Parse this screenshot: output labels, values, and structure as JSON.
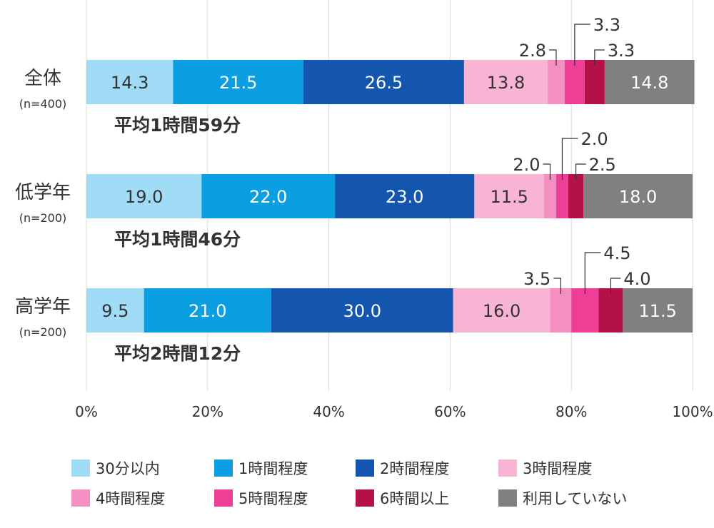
{
  "chart_data": {
    "type": "bar",
    "orientation": "horizontal",
    "stacked": true,
    "xlim": [
      0,
      100
    ],
    "x_ticks": [
      "0%",
      "20%",
      "40%",
      "60%",
      "80%",
      "100%"
    ],
    "grid": true,
    "legend_position": "bottom",
    "categories": [
      {
        "label": "全体",
        "n": "(n=400)",
        "average": "平均1時間59分"
      },
      {
        "label": "低学年",
        "n": "(n=200)",
        "average": "平均1時間46分"
      },
      {
        "label": "高学年",
        "n": "(n=200)",
        "average": "平均2時間12分"
      }
    ],
    "series": [
      {
        "name": "30分以内",
        "color": "#a1dcf7",
        "text_color": "#333333",
        "values": [
          14.3,
          19.0,
          9.5
        ]
      },
      {
        "name": "1時間程度",
        "color": "#0b9ee0",
        "text_color": "#ffffff",
        "values": [
          21.5,
          22.0,
          21.0
        ]
      },
      {
        "name": "2時間程度",
        "color": "#1456ae",
        "text_color": "#ffffff",
        "values": [
          26.5,
          23.0,
          30.0
        ]
      },
      {
        "name": "3時間程度",
        "color": "#f8b4d5",
        "text_color": "#333333",
        "values": [
          13.8,
          11.5,
          16.0
        ]
      },
      {
        "name": "4時間程度",
        "color": "#f58fc1",
        "text_color": "#333333",
        "values": [
          2.8,
          2.0,
          3.5
        ]
      },
      {
        "name": "5時間程度",
        "color": "#ef3e96",
        "text_color": "#ffffff",
        "values": [
          3.3,
          2.0,
          4.5
        ]
      },
      {
        "name": "6時間以上",
        "color": "#b4114b",
        "text_color": "#ffffff",
        "values": [
          3.3,
          2.5,
          4.0
        ]
      },
      {
        "name": "利用していない",
        "color": "#808080",
        "text_color": "#ffffff",
        "values": [
          14.8,
          18.0,
          11.5
        ]
      }
    ],
    "value_labels": [
      [
        "14.3",
        "21.5",
        "26.5",
        "13.8",
        "2.8",
        "3.3",
        "3.3",
        "14.8"
      ],
      [
        "19.0",
        "22.0",
        "23.0",
        "11.5",
        "2.0",
        "2.0",
        "2.5",
        "18.0"
      ],
      [
        "9.5",
        "21.0",
        "30.0",
        "16.0",
        "3.5",
        "4.5",
        "4.0",
        "11.5"
      ]
    ],
    "callout_series": [
      4,
      5,
      6
    ]
  }
}
